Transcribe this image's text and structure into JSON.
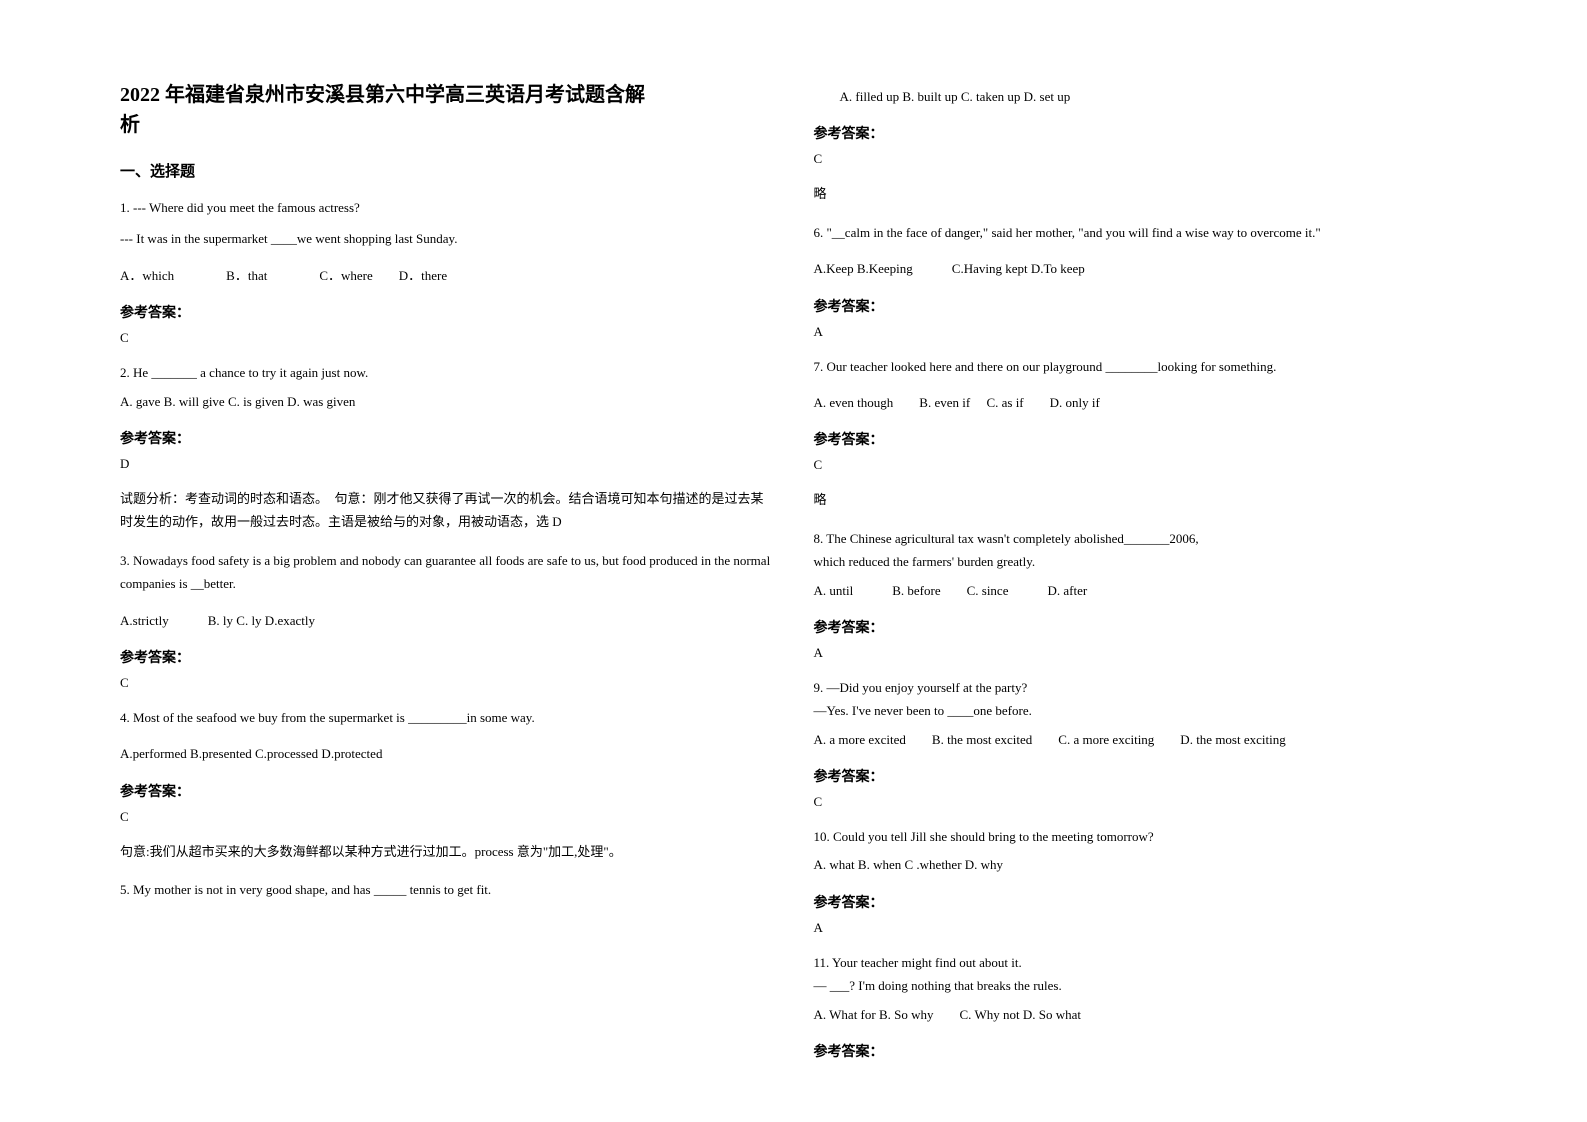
{
  "colors": {
    "text": "#000000",
    "background": "#ffffff"
  },
  "typography": {
    "title_fontsize": 20,
    "body_fontsize": 13,
    "header_fontsize": 15,
    "font_family": "SimSun"
  },
  "title_line1": "2022 年福建省泉州市安溪县第六中学高三英语月考试题含解",
  "title_line2": "析",
  "section1": "一、选择题",
  "q1": {
    "line1": "1. --- Where did you meet the famous actress?",
    "line2": "--- It was in the supermarket ____we went shopping last Sunday.",
    "options": "A．which　　　　B．that　　　　C．where　　D．there",
    "answer_label": "参考答案：",
    "answer": "C"
  },
  "q2": {
    "text": "2. He _______ a chance to try it again just now.",
    "options": "A. gave    B. will give    C. is given    D. was given",
    "answer_label": "参考答案：",
    "answer": "D",
    "explanation": "试题分析：考查动词的时态和语态。　句意：刚才他又获得了再试一次的机会。结合语境可知本句描述的是过去某时发生的动作，故用一般过去时态。主语是被给与的对象，用被动语态，选 D"
  },
  "q3": {
    "text": "3. Nowadays food safety is a big problem and nobody can guarantee all foods are safe to us, but food produced in the normal companies is __better.",
    "options": "A.strictly　　　B. ly    C. ly    D.exactly",
    "answer_label": "参考答案：",
    "answer": "C"
  },
  "q4": {
    "text": "4. Most of the seafood we buy from the supermarket is _________in some way.",
    "options": "A.performed    B.presented    C.processed    D.protected",
    "answer_label": "参考答案：",
    "answer": "C",
    "explanation": "句意:我们从超市买来的大多数海鲜都以某种方式进行过加工。process 意为\"加工,处理\"。"
  },
  "q5": {
    "text": "5. My mother is not in very good shape, and has _____ tennis to get fit.",
    "options": "　　A. filled up    B. built up    C. taken up    D. set up",
    "answer_label": "参考答案：",
    "answer": "C",
    "explanation": "略"
  },
  "q6": {
    "text": "6. \"__calm in the face of danger,\" said her mother, \"and you will find a wise way to overcome it.\"",
    "options": "A.Keep  B.Keeping　　　C.Having kept   D.To keep",
    "answer_label": "参考答案：",
    "answer": "A"
  },
  "q7": {
    "text": "7. Our teacher looked here and there on our playground ________looking for something.",
    "options": "   A. even though　　B. even if　 C. as if　　D. only if",
    "answer_label": "参考答案：",
    "answer": "C",
    "explanation": "略"
  },
  "q8": {
    "text": "8. The Chinese agricultural tax wasn't completely abolished_______2006,",
    "text2": "which reduced the farmers' burden greatly.",
    "options": "A. until　　　B. before　　C. since　　　D. after",
    "answer_label": "参考答案：",
    "answer": "A"
  },
  "q9": {
    "text": "9. —Did you enjoy yourself at the party?",
    "text2": "   —Yes. I've never been to ____one before.",
    "options": "   A. a more excited　　B. the most excited　　C. a more exciting　　D. the most exciting",
    "answer_label": "参考答案：",
    "answer": "C"
  },
  "q10": {
    "text": "10. Could you tell Jill    she should bring to the meeting tomorrow?",
    "options": " A. what   B. when   C .whether   D. why",
    "answer_label": "参考答案：",
    "answer": "A"
  },
  "q11": {
    "text": "11. Your teacher might find out about it.",
    "text2": "  — ___? I'm doing nothing that breaks the rules.",
    "options": "   A. What for   B. So why　　C. Why not    D. So what",
    "answer_label": "参考答案："
  }
}
